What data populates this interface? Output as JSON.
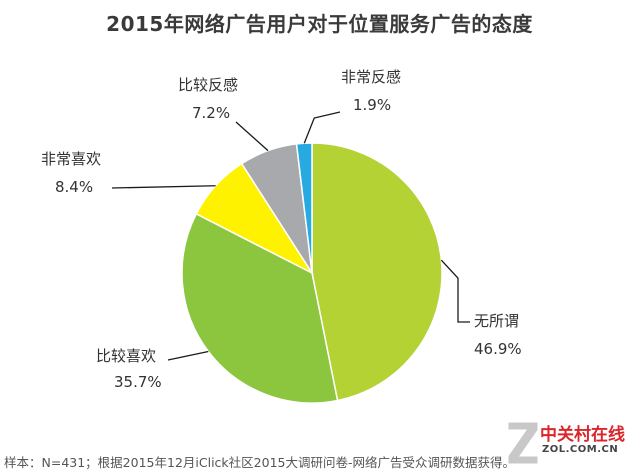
{
  "chart_data": {
    "type": "pie",
    "title": "2015年网络广告用户对于位置服务广告的态度",
    "slices": [
      {
        "label": "无所谓",
        "value": 46.9,
        "value_text": "46.9%",
        "color": "#b4d234"
      },
      {
        "label": "比较喜欢",
        "value": 35.7,
        "value_text": "35.7%",
        "color": "#8cc63f"
      },
      {
        "label": "非常喜欢",
        "value": 8.4,
        "value_text": "8.4%",
        "color": "#fff200"
      },
      {
        "label": "比较反感",
        "value": 7.2,
        "value_text": "7.2%",
        "color": "#a7a9ac"
      },
      {
        "label": "非常反感",
        "value": 1.9,
        "value_text": "1.9%",
        "color": "#27aae1"
      }
    ],
    "start": "12 o'clock",
    "direction": "clockwise",
    "legend": "none (labels beside slices)"
  },
  "footnote": "样本：N=431；根据2015年12月iClick社区2015大调研问卷-网络广告受众调研数据获得。",
  "watermark": {
    "cn": "中关村在线",
    "en": "ZOL.COM.CN"
  }
}
